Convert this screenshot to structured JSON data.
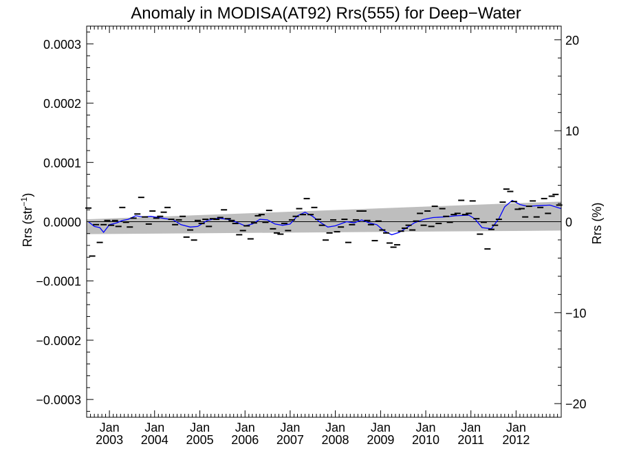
{
  "chart_data": {
    "type": "scatter",
    "title": "Anomaly in MODISA(AT92) Rrs(555) for Deep−Water",
    "ylabel_main": "Rrs (str",
    "ylabel_sup": "−1",
    "ylabel_end": ")",
    "y2label": "Rrs (%)",
    "xlim": [
      "2002-07-01",
      "2012-12-31"
    ],
    "ylim": [
      -0.00033,
      0.00033
    ],
    "y2lim": [
      -21.5,
      21.5
    ],
    "yticks": [
      {
        "value": 0.0003,
        "label": "0.0003"
      },
      {
        "value": 0.0002,
        "label": "0.0002"
      },
      {
        "value": 0.0001,
        "label": "0.0001"
      },
      {
        "value": 0.0,
        "label": "0.0000"
      },
      {
        "value": -0.0001,
        "label": "−0.0001"
      },
      {
        "value": -0.0002,
        "label": "−0.0002"
      },
      {
        "value": -0.0003,
        "label": "−0.0003"
      }
    ],
    "y2ticks": [
      {
        "value": 20,
        "label": "20"
      },
      {
        "value": 10,
        "label": "10"
      },
      {
        "value": 0,
        "label": "0"
      },
      {
        "value": -10,
        "label": "−10"
      },
      {
        "value": -20,
        "label": "−20"
      }
    ],
    "xticks": [
      {
        "date": "2003-01-01",
        "month": "Jan",
        "year": "2003"
      },
      {
        "date": "2004-01-01",
        "month": "Jan",
        "year": "2004"
      },
      {
        "date": "2005-01-01",
        "month": "Jan",
        "year": "2005"
      },
      {
        "date": "2006-01-01",
        "month": "Jan",
        "year": "2006"
      },
      {
        "date": "2007-01-01",
        "month": "Jan",
        "year": "2007"
      },
      {
        "date": "2008-01-01",
        "month": "Jan",
        "year": "2008"
      },
      {
        "date": "2009-01-01",
        "month": "Jan",
        "year": "2009"
      },
      {
        "date": "2010-01-01",
        "month": "Jan",
        "year": "2010"
      },
      {
        "date": "2011-01-01",
        "month": "Jan",
        "year": "2011"
      },
      {
        "date": "2012-01-01",
        "month": "Jan",
        "year": "2012"
      }
    ],
    "trend_band": {
      "start": {
        "date": "2002-07-01",
        "lower": -2.1e-05,
        "upper": 4e-06
      },
      "end": {
        "date": "2012-12-31",
        "lower": -1.5e-05,
        "upper": 3.4e-05
      }
    },
    "zero_line": 0,
    "series": [
      {
        "type": "markers",
        "marker": "dash",
        "color": "#000000",
        "points": [
          {
            "x": "2002-07-15",
            "y": 2.3e-05
          },
          {
            "x": "2002-08-15",
            "y": -5.8e-05
          },
          {
            "x": "2002-09-15",
            "y": -5e-06
          },
          {
            "x": "2002-10-15",
            "y": -3.5e-05
          },
          {
            "x": "2002-11-15",
            "y": -5e-06
          },
          {
            "x": "2002-12-15",
            "y": 2e-06
          },
          {
            "x": "2003-01-15",
            "y": -6e-06
          },
          {
            "x": "2003-02-15",
            "y": 2e-06
          },
          {
            "x": "2003-03-15",
            "y": -8e-06
          },
          {
            "x": "2003-04-15",
            "y": 2.4e-05
          },
          {
            "x": "2003-05-15",
            "y": -1e-06
          },
          {
            "x": "2003-06-15",
            "y": -9e-06
          },
          {
            "x": "2003-07-15",
            "y": 6e-06
          },
          {
            "x": "2003-08-15",
            "y": 1.3e-05
          },
          {
            "x": "2003-09-15",
            "y": 4.1e-05
          },
          {
            "x": "2003-10-15",
            "y": 8e-06
          },
          {
            "x": "2003-11-15",
            "y": -4e-06
          },
          {
            "x": "2003-12-15",
            "y": 1.8e-05
          },
          {
            "x": "2004-01-15",
            "y": 6e-06
          },
          {
            "x": "2004-02-15",
            "y": 9e-06
          },
          {
            "x": "2004-03-15",
            "y": 1.6e-05
          },
          {
            "x": "2004-04-15",
            "y": 2.4e-05
          },
          {
            "x": "2004-05-15",
            "y": 4e-06
          },
          {
            "x": "2004-06-15",
            "y": -5e-06
          },
          {
            "x": "2004-07-15",
            "y": 3e-06
          },
          {
            "x": "2004-08-15",
            "y": 9e-06
          },
          {
            "x": "2004-09-15",
            "y": -2.6e-05
          },
          {
            "x": "2004-10-15",
            "y": -1.4e-05
          },
          {
            "x": "2004-11-15",
            "y": -3.1e-05
          },
          {
            "x": "2004-12-15",
            "y": 2e-06
          },
          {
            "x": "2005-01-15",
            "y": -3e-06
          },
          {
            "x": "2005-02-15",
            "y": 4e-06
          },
          {
            "x": "2005-03-15",
            "y": -8e-06
          },
          {
            "x": "2005-04-15",
            "y": 5e-06
          },
          {
            "x": "2005-05-15",
            "y": 4e-06
          },
          {
            "x": "2005-06-15",
            "y": 7e-06
          },
          {
            "x": "2005-07-15",
            "y": 2e-05
          },
          {
            "x": "2005-08-15",
            "y": 5e-06
          },
          {
            "x": "2005-09-15",
            "y": 2e-06
          },
          {
            "x": "2005-10-15",
            "y": -3e-06
          },
          {
            "x": "2005-11-15",
            "y": -2.2e-05
          },
          {
            "x": "2005-12-15",
            "y": -1.5e-05
          },
          {
            "x": "2006-01-15",
            "y": -7e-06
          },
          {
            "x": "2006-02-15",
            "y": -2.9e-05
          },
          {
            "x": "2006-03-15",
            "y": -2e-06
          },
          {
            "x": "2006-04-15",
            "y": 1e-05
          },
          {
            "x": "2006-05-15",
            "y": 1.2e-05
          },
          {
            "x": "2006-06-15",
            "y": -1e-06
          },
          {
            "x": "2006-07-15",
            "y": 1.9e-05
          },
          {
            "x": "2006-08-15",
            "y": -1.2e-05
          },
          {
            "x": "2006-09-15",
            "y": -1.9e-05
          },
          {
            "x": "2006-10-15",
            "y": -2.1e-05
          },
          {
            "x": "2006-11-15",
            "y": -3e-06
          },
          {
            "x": "2006-12-15",
            "y": -1.5e-05
          },
          {
            "x": "2007-01-15",
            "y": 3e-06
          },
          {
            "x": "2007-02-15",
            "y": 9e-06
          },
          {
            "x": "2007-03-15",
            "y": 2.2e-05
          },
          {
            "x": "2007-04-15",
            "y": 1.2e-05
          },
          {
            "x": "2007-05-15",
            "y": 3.9e-05
          },
          {
            "x": "2007-06-15",
            "y": 1.2e-05
          },
          {
            "x": "2007-07-15",
            "y": 2.4e-05
          },
          {
            "x": "2007-08-15",
            "y": 4e-06
          },
          {
            "x": "2007-09-15",
            "y": -6e-06
          },
          {
            "x": "2007-10-15",
            "y": -3.1e-05
          },
          {
            "x": "2007-11-15",
            "y": -1.9e-05
          },
          {
            "x": "2007-12-15",
            "y": 3e-06
          },
          {
            "x": "2008-01-15",
            "y": -1.7e-05
          },
          {
            "x": "2008-02-15",
            "y": -9e-06
          },
          {
            "x": "2008-03-15",
            "y": 4e-06
          },
          {
            "x": "2008-04-15",
            "y": -3.5e-05
          },
          {
            "x": "2008-05-15",
            "y": -5e-06
          },
          {
            "x": "2008-06-15",
            "y": 3e-06
          },
          {
            "x": "2008-07-15",
            "y": 1.8e-05
          },
          {
            "x": "2008-08-15",
            "y": 1.8e-05
          },
          {
            "x": "2008-09-15",
            "y": 2e-06
          },
          {
            "x": "2008-10-15",
            "y": -5e-06
          },
          {
            "x": "2008-11-15",
            "y": -3.2e-05
          },
          {
            "x": "2008-12-15",
            "y": 1e-06
          },
          {
            "x": "2009-01-15",
            "y": -1.4e-05
          },
          {
            "x": "2009-02-15",
            "y": -1.9e-05
          },
          {
            "x": "2009-03-15",
            "y": -3.6e-05
          },
          {
            "x": "2009-04-15",
            "y": -4.3e-05
          },
          {
            "x": "2009-05-15",
            "y": -3.9e-05
          },
          {
            "x": "2009-06-15",
            "y": -1.6e-05
          },
          {
            "x": "2009-07-15",
            "y": -1.1e-05
          },
          {
            "x": "2009-08-15",
            "y": -6e-06
          },
          {
            "x": "2009-09-15",
            "y": -1.4e-05
          },
          {
            "x": "2009-10-15",
            "y": 1e-06
          },
          {
            "x": "2009-11-15",
            "y": 1.4e-05
          },
          {
            "x": "2009-12-15",
            "y": -6e-06
          },
          {
            "x": "2010-01-15",
            "y": 1.8e-05
          },
          {
            "x": "2010-02-15",
            "y": -8e-06
          },
          {
            "x": "2010-03-15",
            "y": 2.6e-05
          },
          {
            "x": "2010-04-15",
            "y": -3e-06
          },
          {
            "x": "2010-05-15",
            "y": 2.2e-05
          },
          {
            "x": "2010-06-15",
            "y": 9e-06
          },
          {
            "x": "2010-07-15",
            "y": -1e-06
          },
          {
            "x": "2010-08-15",
            "y": 1.2e-05
          },
          {
            "x": "2010-09-15",
            "y": 1.4e-05
          },
          {
            "x": "2010-10-15",
            "y": 3.6e-05
          },
          {
            "x": "2010-11-15",
            "y": 1.2e-05
          },
          {
            "x": "2010-12-15",
            "y": 1.4e-05
          },
          {
            "x": "2011-01-15",
            "y": 3.5e-05
          },
          {
            "x": "2011-02-15",
            "y": 5e-06
          },
          {
            "x": "2011-03-15",
            "y": -2.1e-05
          },
          {
            "x": "2011-04-15",
            "y": -1e-06
          },
          {
            "x": "2011-05-15",
            "y": -4.6e-05
          },
          {
            "x": "2011-06-15",
            "y": -1.3e-05
          },
          {
            "x": "2011-07-15",
            "y": -6e-06
          },
          {
            "x": "2011-08-15",
            "y": 4e-06
          },
          {
            "x": "2011-09-15",
            "y": 3.3e-05
          },
          {
            "x": "2011-10-15",
            "y": 5.5e-05
          },
          {
            "x": "2011-11-15",
            "y": 5.1e-05
          },
          {
            "x": "2011-12-15",
            "y": 3.4e-05
          },
          {
            "x": "2012-01-15",
            "y": 2.1e-05
          },
          {
            "x": "2012-02-15",
            "y": 2.2e-05
          },
          {
            "x": "2012-03-15",
            "y": 8e-06
          },
          {
            "x": "2012-04-15",
            "y": 2.6e-05
          },
          {
            "x": "2012-05-15",
            "y": 3.5e-05
          },
          {
            "x": "2012-06-15",
            "y": 8e-06
          },
          {
            "x": "2012-07-15",
            "y": 2.4e-05
          },
          {
            "x": "2012-08-15",
            "y": 3.9e-05
          },
          {
            "x": "2012-09-15",
            "y": 1.4e-05
          },
          {
            "x": "2012-10-15",
            "y": 4.3e-05
          },
          {
            "x": "2012-11-15",
            "y": 4.6e-05
          },
          {
            "x": "2012-12-15",
            "y": 2.8e-05
          }
        ]
      },
      {
        "type": "line",
        "color": "#0000ff",
        "points": [
          {
            "x": "2002-07-15",
            "y": 0.0
          },
          {
            "x": "2002-09-01",
            "y": -8e-06
          },
          {
            "x": "2002-10-15",
            "y": -1e-05
          },
          {
            "x": "2002-11-15",
            "y": -1.8e-05
          },
          {
            "x": "2003-01-01",
            "y": -5e-06
          },
          {
            "x": "2003-03-01",
            "y": -2e-06
          },
          {
            "x": "2003-04-15",
            "y": 2e-06
          },
          {
            "x": "2003-06-01",
            "y": 4e-06
          },
          {
            "x": "2003-08-01",
            "y": 1e-05
          },
          {
            "x": "2003-10-01",
            "y": 8e-06
          },
          {
            "x": "2003-12-01",
            "y": 9e-06
          },
          {
            "x": "2004-03-01",
            "y": 6e-06
          },
          {
            "x": "2004-06-01",
            "y": 3e-06
          },
          {
            "x": "2004-08-01",
            "y": -5e-06
          },
          {
            "x": "2004-10-15",
            "y": -9e-06
          },
          {
            "x": "2004-12-15",
            "y": -8e-06
          },
          {
            "x": "2005-03-01",
            "y": 2e-06
          },
          {
            "x": "2005-06-01",
            "y": 6e-06
          },
          {
            "x": "2005-08-15",
            "y": 4e-06
          },
          {
            "x": "2005-10-15",
            "y": 0.0
          },
          {
            "x": "2006-01-01",
            "y": -7e-06
          },
          {
            "x": "2006-03-01",
            "y": -4e-06
          },
          {
            "x": "2006-05-01",
            "y": 4e-06
          },
          {
            "x": "2006-07-01",
            "y": 3e-06
          },
          {
            "x": "2006-09-01",
            "y": -4e-06
          },
          {
            "x": "2006-11-01",
            "y": -6e-06
          },
          {
            "x": "2007-01-01",
            "y": -4e-06
          },
          {
            "x": "2007-03-01",
            "y": 1e-05
          },
          {
            "x": "2007-05-01",
            "y": 1.6e-05
          },
          {
            "x": "2007-07-01",
            "y": 9e-06
          },
          {
            "x": "2007-09-01",
            "y": -1e-06
          },
          {
            "x": "2007-11-01",
            "y": -9e-06
          },
          {
            "x": "2008-01-01",
            "y": -7e-06
          },
          {
            "x": "2008-04-01",
            "y": 0.0
          },
          {
            "x": "2008-06-01",
            "y": -2e-06
          },
          {
            "x": "2008-08-01",
            "y": 3e-06
          },
          {
            "x": "2008-10-01",
            "y": -2e-06
          },
          {
            "x": "2008-12-01",
            "y": -5e-06
          },
          {
            "x": "2009-02-01",
            "y": -1.6e-05
          },
          {
            "x": "2009-04-01",
            "y": -2.2e-05
          },
          {
            "x": "2009-06-01",
            "y": -1.8e-05
          },
          {
            "x": "2009-08-01",
            "y": -1e-05
          },
          {
            "x": "2009-10-01",
            "y": -2e-06
          },
          {
            "x": "2009-12-15",
            "y": 4e-06
          },
          {
            "x": "2010-03-01",
            "y": 7e-06
          },
          {
            "x": "2010-06-01",
            "y": 8e-06
          },
          {
            "x": "2010-09-01",
            "y": 1e-05
          },
          {
            "x": "2010-12-15",
            "y": 1.1e-05
          },
          {
            "x": "2011-02-01",
            "y": 5e-06
          },
          {
            "x": "2011-04-01",
            "y": -1e-05
          },
          {
            "x": "2011-06-15",
            "y": -1.2e-05
          },
          {
            "x": "2011-08-15",
            "y": 5e-06
          },
          {
            "x": "2011-10-01",
            "y": 2.5e-05
          },
          {
            "x": "2011-12-01",
            "y": 3.6e-05
          },
          {
            "x": "2012-02-01",
            "y": 2.9e-05
          },
          {
            "x": "2012-04-01",
            "y": 2.6e-05
          },
          {
            "x": "2012-07-01",
            "y": 2.7e-05
          },
          {
            "x": "2012-10-01",
            "y": 2.8e-05
          },
          {
            "x": "2012-12-31",
            "y": 2.2e-05
          }
        ]
      }
    ]
  }
}
